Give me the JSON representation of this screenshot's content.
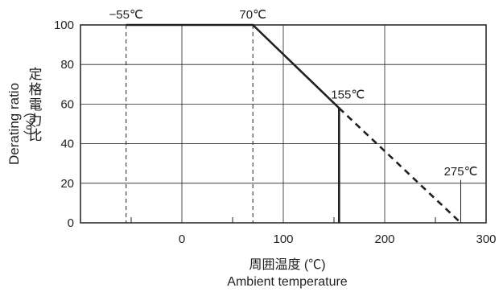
{
  "chart_data": {
    "type": "line",
    "title": "",
    "ylabel_en": "Derating ratio",
    "ylabel_jp": "定格電力比",
    "ylabel_unit": "（%）",
    "xlabel_jp": "周囲温度 (℃)",
    "xlabel_en": "Ambient temperature",
    "xlim": [
      -100,
      300
    ],
    "ylim": [
      0,
      100
    ],
    "x_ticks": [
      0,
      100,
      200,
      300
    ],
    "y_ticks": [
      0,
      20,
      40,
      60,
      80,
      100
    ],
    "x_minor_ticks": [
      -50,
      50,
      150,
      250
    ],
    "grid": true,
    "series": [
      {
        "style": "solid",
        "x": [
          -55,
          70,
          155
        ],
        "y": [
          100,
          100,
          58
        ],
        "drop_to_zero_at": 155
      },
      {
        "style": "dashed",
        "x": [
          155,
          275
        ],
        "y": [
          58,
          0
        ]
      }
    ],
    "reference_lines": [
      {
        "x": -55,
        "style": "dashed"
      },
      {
        "x": 70,
        "style": "dashed"
      },
      {
        "x": 275,
        "style": "solid"
      }
    ],
    "annotations": [
      {
        "text": "−55℃",
        "x": -55,
        "y": 100
      },
      {
        "text": "70℃",
        "x": 70,
        "y": 100
      },
      {
        "text": "155℃",
        "x": 155,
        "y": 58
      },
      {
        "text": "275℃",
        "x": 275,
        "y": 20
      }
    ],
    "colors": {
      "line": "#231f20",
      "grid": "#231f20"
    }
  }
}
